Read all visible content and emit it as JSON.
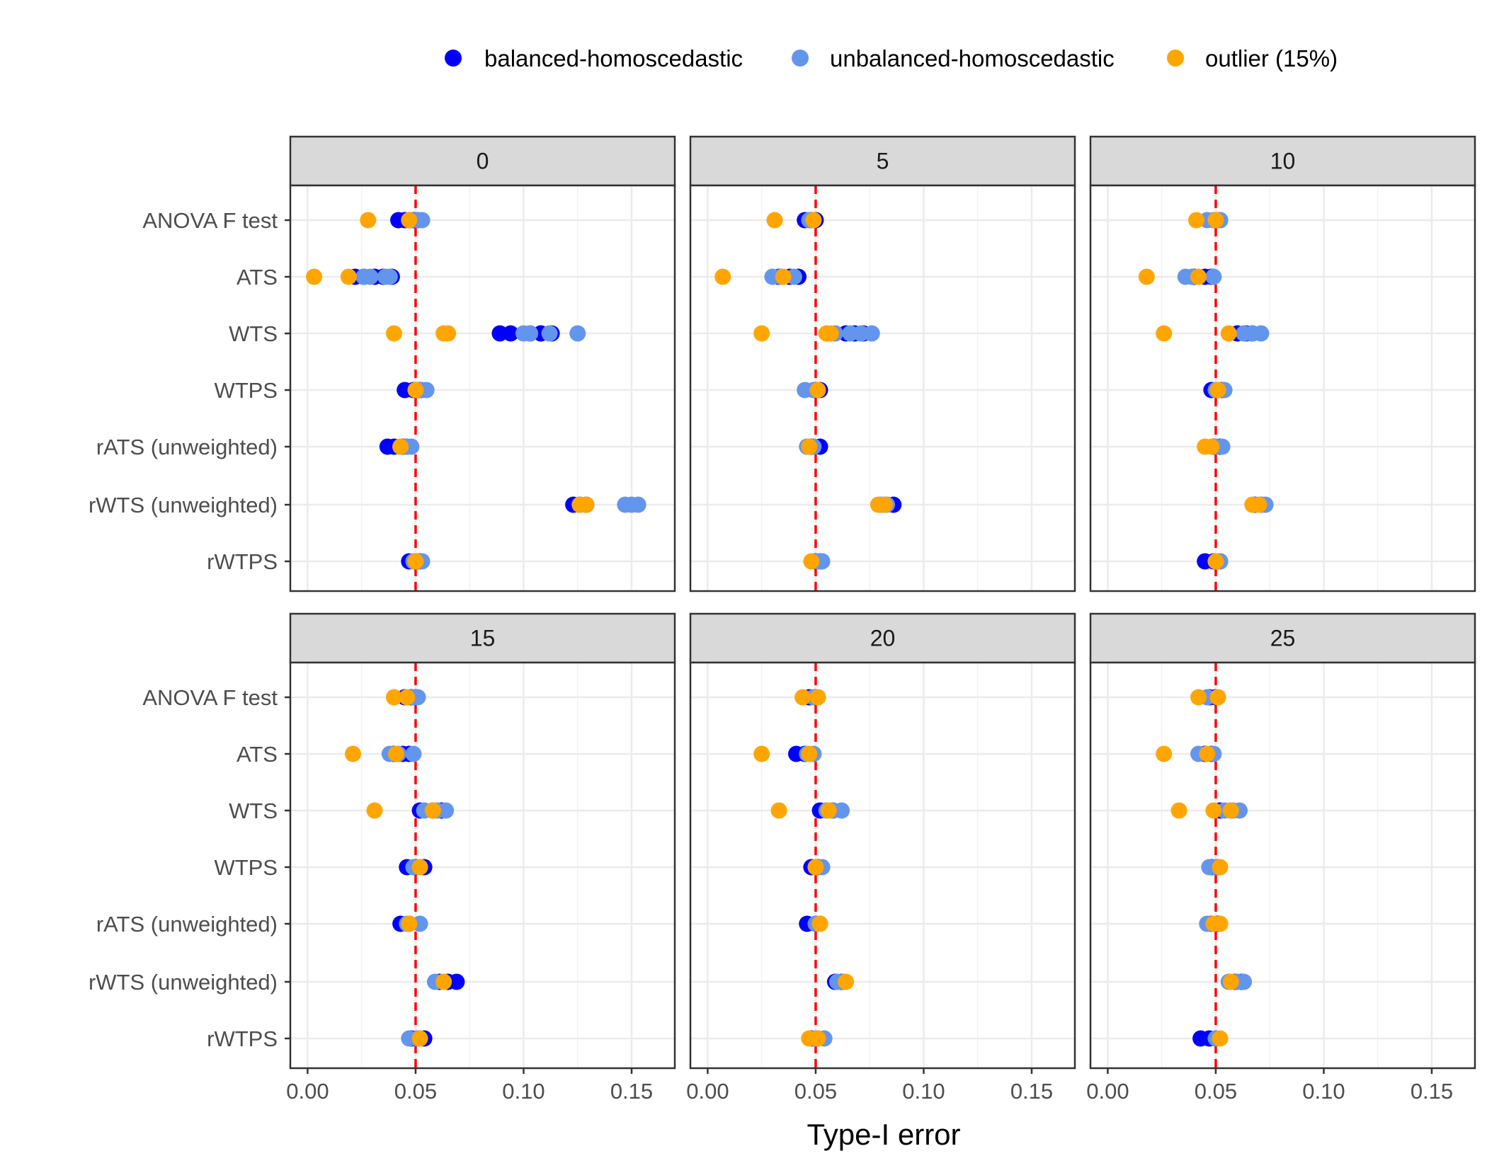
{
  "chart_data": {
    "type": "scatter",
    "xlabel": "Type-I error",
    "ylabel": "",
    "xlim": [
      -0.008,
      0.17
    ],
    "xticks": [
      0.0,
      0.05,
      0.1,
      0.15
    ],
    "xtick_labels": [
      "0.00",
      "0.05",
      "0.10",
      "0.15"
    ],
    "reference_line": {
      "x": 0.05,
      "color": "#ff0000",
      "style": "dashed"
    },
    "categories": [
      "ANOVA F test",
      "ATS",
      "WTS",
      "WTPS",
      "rATS (unweighted)",
      "rWTS (unweighted)",
      "rWTPS"
    ],
    "legend": {
      "position": "top",
      "entries": [
        {
          "name": "balanced-homoscedastic",
          "color": "#0000ff"
        },
        {
          "name": "unbalanced-homoscedastic",
          "color": "#6495ed"
        },
        {
          "name": "outlier (15%)",
          "color": "#ffa500"
        }
      ]
    },
    "facets": [
      {
        "label": "0",
        "series": {
          "balanced-homoscedastic": [
            [
              0.042,
              0.045,
              0.047,
              0.049,
              0.051
            ],
            [
              0.022,
              0.026,
              0.031,
              0.035,
              0.039
            ],
            [
              0.089,
              0.094,
              0.103,
              0.108,
              0.113
            ],
            [
              0.045,
              0.049,
              0.051,
              0.052
            ],
            [
              0.037,
              0.04,
              0.044,
              0.046
            ],
            [
              0.123,
              0.126,
              0.129
            ],
            [
              0.047,
              0.05,
              0.052
            ]
          ],
          "unbalanced-homoscedastic": [
            [
              0.048,
              0.051,
              0.053
            ],
            [
              0.026,
              0.029,
              0.036,
              0.038
            ],
            [
              0.1,
              0.103,
              0.112,
              0.125
            ],
            [
              0.051,
              0.053,
              0.055
            ],
            [
              0.043,
              0.046,
              0.048
            ],
            [
              0.147,
              0.15,
              0.153
            ],
            [
              0.049,
              0.051,
              0.053
            ]
          ],
          "outlier (15%)": [
            [
              0.028,
              0.047
            ],
            [
              0.003,
              0.019
            ],
            [
              0.04,
              0.063,
              0.065
            ],
            [
              0.05
            ],
            [
              0.043
            ],
            [
              0.126,
              0.129
            ],
            [
              0.05
            ]
          ]
        }
      },
      {
        "label": "5",
        "series": {
          "balanced-homoscedastic": [
            [
              0.045,
              0.048,
              0.05
            ],
            [
              0.033,
              0.038,
              0.042
            ],
            [
              0.064,
              0.068,
              0.072
            ],
            [
              0.05,
              0.052
            ],
            [
              0.048,
              0.052
            ],
            [
              0.082,
              0.086
            ],
            [
              0.05,
              0.052
            ]
          ],
          "unbalanced-homoscedastic": [
            [
              0.047,
              0.049
            ],
            [
              0.03,
              0.034,
              0.04
            ],
            [
              0.059,
              0.066,
              0.071,
              0.076
            ],
            [
              0.045,
              0.049
            ],
            [
              0.046,
              0.049
            ],
            [
              0.08,
              0.083
            ],
            [
              0.051,
              0.053
            ]
          ],
          "outlier (15%)": [
            [
              0.031,
              0.049
            ],
            [
              0.007,
              0.035
            ],
            [
              0.025,
              0.055,
              0.057
            ],
            [
              0.051
            ],
            [
              0.047
            ],
            [
              0.079,
              0.082
            ],
            [
              0.048
            ]
          ]
        }
      },
      {
        "label": "10",
        "series": {
          "balanced-homoscedastic": [
            [
              0.05,
              0.052
            ],
            [
              0.04,
              0.045,
              0.048
            ],
            [
              0.06,
              0.064,
              0.067
            ],
            [
              0.048,
              0.051,
              0.053
            ],
            [
              0.049,
              0.052
            ],
            [
              0.068,
              0.071
            ],
            [
              0.045,
              0.049,
              0.052
            ]
          ],
          "unbalanced-homoscedastic": [
            [
              0.046,
              0.049,
              0.052
            ],
            [
              0.036,
              0.039,
              0.049
            ],
            [
              0.063,
              0.067,
              0.071
            ],
            [
              0.05,
              0.054
            ],
            [
              0.05,
              0.053
            ],
            [
              0.071,
              0.073
            ],
            [
              0.05,
              0.052
            ]
          ],
          "outlier (15%)": [
            [
              0.041,
              0.05
            ],
            [
              0.018,
              0.042
            ],
            [
              0.026,
              0.056
            ],
            [
              0.051
            ],
            [
              0.045,
              0.048
            ],
            [
              0.067,
              0.07
            ],
            [
              0.05
            ]
          ]
        }
      },
      {
        "label": "15",
        "series": {
          "balanced-homoscedastic": [
            [
              0.045,
              0.048,
              0.05
            ],
            [
              0.04,
              0.044,
              0.047
            ],
            [
              0.052,
              0.058,
              0.062
            ],
            [
              0.046,
              0.05,
              0.054
            ],
            [
              0.043,
              0.047
            ],
            [
              0.061,
              0.065,
              0.069
            ],
            [
              0.048,
              0.051,
              0.054
            ]
          ],
          "unbalanced-homoscedastic": [
            [
              0.049,
              0.051
            ],
            [
              0.038,
              0.042,
              0.049
            ],
            [
              0.054,
              0.06,
              0.064
            ],
            [
              0.049,
              0.052
            ],
            [
              0.046,
              0.052
            ],
            [
              0.059,
              0.063
            ],
            [
              0.047,
              0.051
            ]
          ],
          "outlier (15%)": [
            [
              0.04,
              0.046
            ],
            [
              0.021,
              0.041
            ],
            [
              0.031,
              0.058
            ],
            [
              0.052
            ],
            [
              0.047
            ],
            [
              0.063
            ],
            [
              0.052
            ]
          ]
        }
      },
      {
        "label": "20",
        "series": {
          "balanced-homoscedastic": [
            [
              0.047,
              0.05
            ],
            [
              0.041,
              0.045
            ],
            [
              0.052,
              0.058
            ],
            [
              0.048,
              0.051
            ],
            [
              0.046,
              0.05
            ],
            [
              0.059,
              0.062
            ],
            [
              0.048,
              0.051
            ]
          ],
          "unbalanced-homoscedastic": [
            [
              0.049,
              0.051
            ],
            [
              0.046,
              0.049
            ],
            [
              0.055,
              0.058,
              0.062
            ],
            [
              0.05,
              0.053
            ],
            [
              0.05,
              0.052
            ],
            [
              0.06,
              0.063
            ],
            [
              0.05,
              0.054
            ]
          ],
          "outlier (15%)": [
            [
              0.044,
              0.051
            ],
            [
              0.025,
              0.047
            ],
            [
              0.033,
              0.056
            ],
            [
              0.05
            ],
            [
              0.052
            ],
            [
              0.064
            ],
            [
              0.047,
              0.051
            ]
          ]
        }
      },
      {
        "label": "25",
        "series": {
          "balanced-homoscedastic": [
            [
              0.047,
              0.05
            ],
            [
              0.045,
              0.048
            ],
            [
              0.052,
              0.057
            ],
            [
              0.048,
              0.051
            ],
            [
              0.048,
              0.051
            ],
            [
              0.059,
              0.062
            ],
            [
              0.043,
              0.047,
              0.05
            ]
          ],
          "unbalanced-homoscedastic": [
            [
              0.046,
              0.051
            ],
            [
              0.042,
              0.049
            ],
            [
              0.054,
              0.058,
              0.061
            ],
            [
              0.047,
              0.05
            ],
            [
              0.046,
              0.049
            ],
            [
              0.056,
              0.06,
              0.063
            ],
            [
              0.05
            ]
          ],
          "outlier (15%)": [
            [
              0.042,
              0.051
            ],
            [
              0.026,
              0.046
            ],
            [
              0.033,
              0.049,
              0.057
            ],
            [
              0.052
            ],
            [
              0.049,
              0.052
            ],
            [
              0.057
            ],
            [
              0.052
            ]
          ]
        }
      }
    ]
  }
}
